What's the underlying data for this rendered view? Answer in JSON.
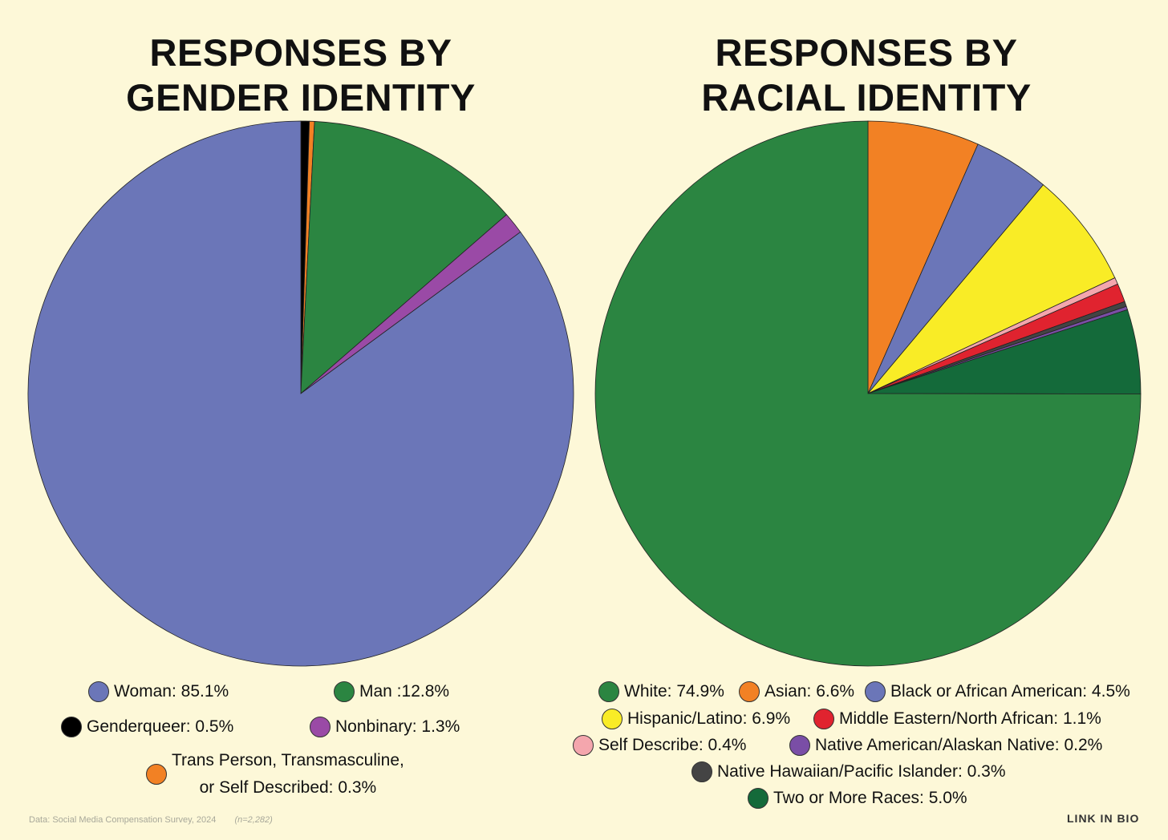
{
  "chart_data": [
    {
      "type": "pie",
      "title_lines": [
        "RESPONSES BY",
        "GENDER IDENTITY"
      ],
      "slices": [
        {
          "label": "Genderqueer",
          "value": 0.5,
          "color": "#000000",
          "legend": "Genderqueer: 0.5%"
        },
        {
          "label": "Trans Person, Transmasculine, or Self Described",
          "value": 0.3,
          "color": "#f28124",
          "legend_lines": [
            "Trans Person, Transmasculine,",
            "or Self Described: 0.3%"
          ]
        },
        {
          "label": "Man",
          "value": 12.8,
          "color": "#2b8541",
          "legend": "Man :12.8%"
        },
        {
          "label": "Nonbinary",
          "value": 1.3,
          "color": "#9a4aa6",
          "legend": "Nonbinary: 1.3%"
        },
        {
          "label": "Woman",
          "value": 85.1,
          "color": "#6b76b8",
          "legend": "Woman: 85.1%"
        }
      ]
    },
    {
      "type": "pie",
      "title_lines": [
        "RESPONSES BY",
        "RACIAL IDENTITY"
      ],
      "slices": [
        {
          "label": "Asian",
          "value": 6.6,
          "color": "#f28124",
          "legend": "Asian: 6.6%"
        },
        {
          "label": "Black or African American",
          "value": 4.5,
          "color": "#6b76b8",
          "legend": "Black or African American: 4.5%"
        },
        {
          "label": "Hispanic/Latino",
          "value": 6.9,
          "color": "#f9ec26",
          "legend": "Hispanic/Latino: 6.9%"
        },
        {
          "label": "Self Describe",
          "value": 0.4,
          "color": "#f4a6ad",
          "legend": "Self Describe: 0.4%"
        },
        {
          "label": "Middle Eastern/North African",
          "value": 1.1,
          "color": "#e0232f",
          "legend": "Middle Eastern/North African: 1.1%"
        },
        {
          "label": "Native Hawaiian/Pacific Islander",
          "value": 0.3,
          "color": "#444444",
          "legend": "Native Hawaiian/Pacific Islander: 0.3%"
        },
        {
          "label": "Native American/Alaskan Native",
          "value": 0.2,
          "color": "#7a4ea6",
          "legend": "Native American/Alaskan Native: 0.2%"
        },
        {
          "label": "Two or More Races",
          "value": 5.0,
          "color": "#146a3a",
          "legend": "Two or More Races: 5.0%"
        },
        {
          "label": "White",
          "value": 74.9,
          "color": "#2b8541",
          "legend": "White: 74.9%"
        }
      ]
    }
  ],
  "footer": {
    "source": "Data: Social Media Compensation Survey, 2024",
    "sample": "(n=2,282)",
    "brand": "LINK IN BIO"
  }
}
